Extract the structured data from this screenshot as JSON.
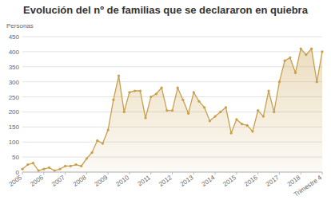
{
  "chart_data": {
    "type": "area",
    "title": "Evolución del nº de familias que se declararon en quiebra",
    "y_label": "Personas",
    "categories": [
      "2005",
      null,
      null,
      null,
      "2006",
      null,
      null,
      null,
      "2007",
      null,
      null,
      null,
      "2008",
      null,
      null,
      null,
      "2009",
      null,
      null,
      null,
      "2010",
      null,
      null,
      null,
      "2011",
      null,
      null,
      null,
      "2012",
      null,
      null,
      null,
      "2013",
      null,
      null,
      null,
      "2014",
      null,
      null,
      null,
      "2015",
      null,
      null,
      null,
      "2016",
      null,
      null,
      null,
      "2017",
      null,
      null,
      null,
      "2018",
      null,
      null,
      null,
      "Trimestre 4"
    ],
    "values": [
      10,
      25,
      30,
      5,
      10,
      15,
      5,
      10,
      20,
      20,
      25,
      20,
      45,
      65,
      105,
      95,
      140,
      240,
      320,
      200,
      265,
      270,
      270,
      180,
      250,
      260,
      280,
      205,
      205,
      280,
      240,
      195,
      265,
      235,
      215,
      170,
      185,
      200,
      215,
      130,
      175,
      160,
      155,
      135,
      205,
      185,
      270,
      200,
      300,
      370,
      380,
      330,
      410,
      390,
      410,
      300,
      400
    ],
    "color": "#c9a04b",
    "marker": "circle",
    "ylim": [
      0,
      450
    ],
    "yticks": [
      0,
      50,
      100,
      150,
      200,
      250,
      300,
      350,
      400,
      450
    ],
    "grid": true
  }
}
